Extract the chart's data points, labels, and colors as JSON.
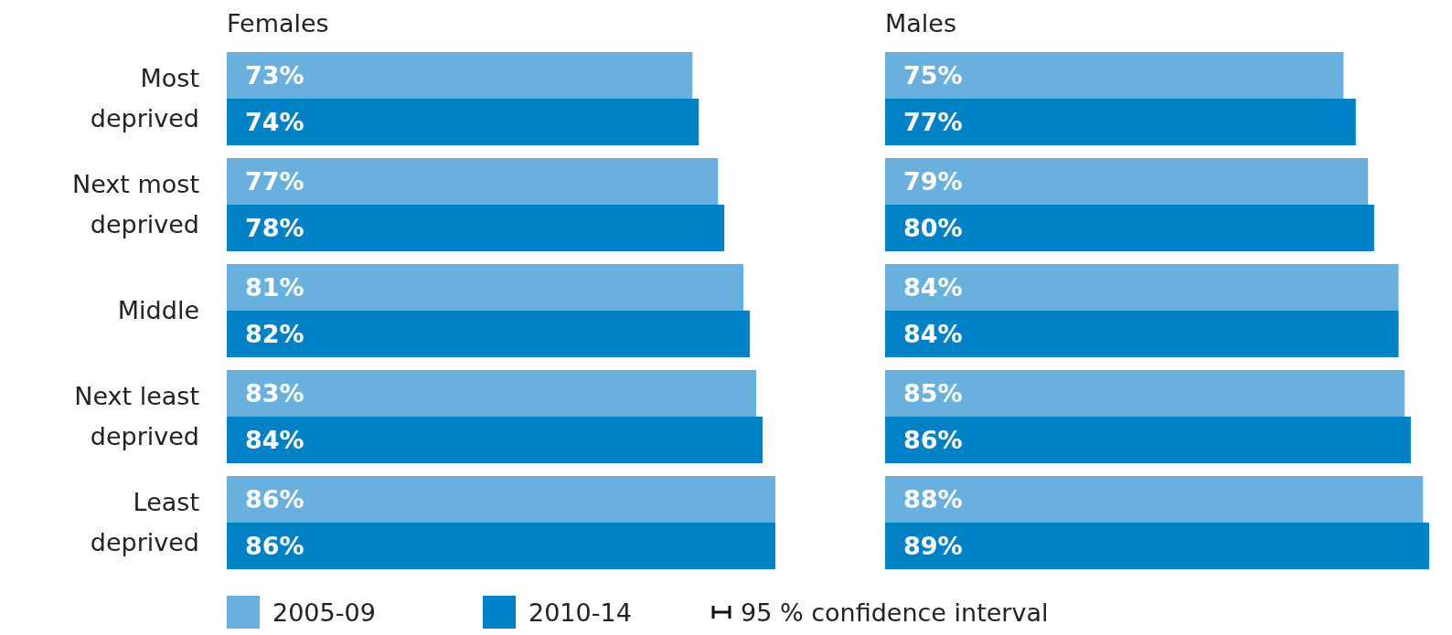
{
  "chart_data": [
    {
      "type": "bar",
      "orientation": "horizontal",
      "title": "Females",
      "categories": [
        "Most deprived",
        "Next most deprived",
        "Middle",
        "Next least deprived",
        "Least deprived"
      ],
      "tick_labels": "y",
      "legend": "bottom",
      "annotations": [
        "95 % confidence interval"
      ],
      "series": [
        {
          "name": "2005-09",
          "color": "#6ab0de",
          "values": [
            73,
            77,
            81,
            83,
            86
          ],
          "value_labels": [
            "73%",
            "77%",
            "81%",
            "83%",
            "86%"
          ]
        },
        {
          "name": "2010-14",
          "color": "#0081c6",
          "values": [
            74,
            78,
            82,
            84,
            86
          ],
          "value_labels": [
            "74%",
            "78%",
            "82%",
            "84%",
            "86%"
          ]
        }
      ]
    },
    {
      "type": "bar",
      "orientation": "horizontal",
      "title": "Males",
      "categories": [
        null,
        null,
        null,
        null,
        null
      ],
      "tick_labels": false,
      "series": [
        {
          "name": "2005-09",
          "color": "#6ab0de",
          "values": [
            75,
            79,
            84,
            85,
            88
          ],
          "value_labels": [
            "75%",
            "79%",
            "84%",
            "85%",
            "88%"
          ]
        },
        {
          "name": "2010-14",
          "color": "#0081c6",
          "values": [
            77,
            80,
            84,
            86,
            89
          ],
          "value_labels": [
            "77%",
            "80%",
            "84%",
            "86%",
            "89%"
          ]
        }
      ]
    }
  ]
}
